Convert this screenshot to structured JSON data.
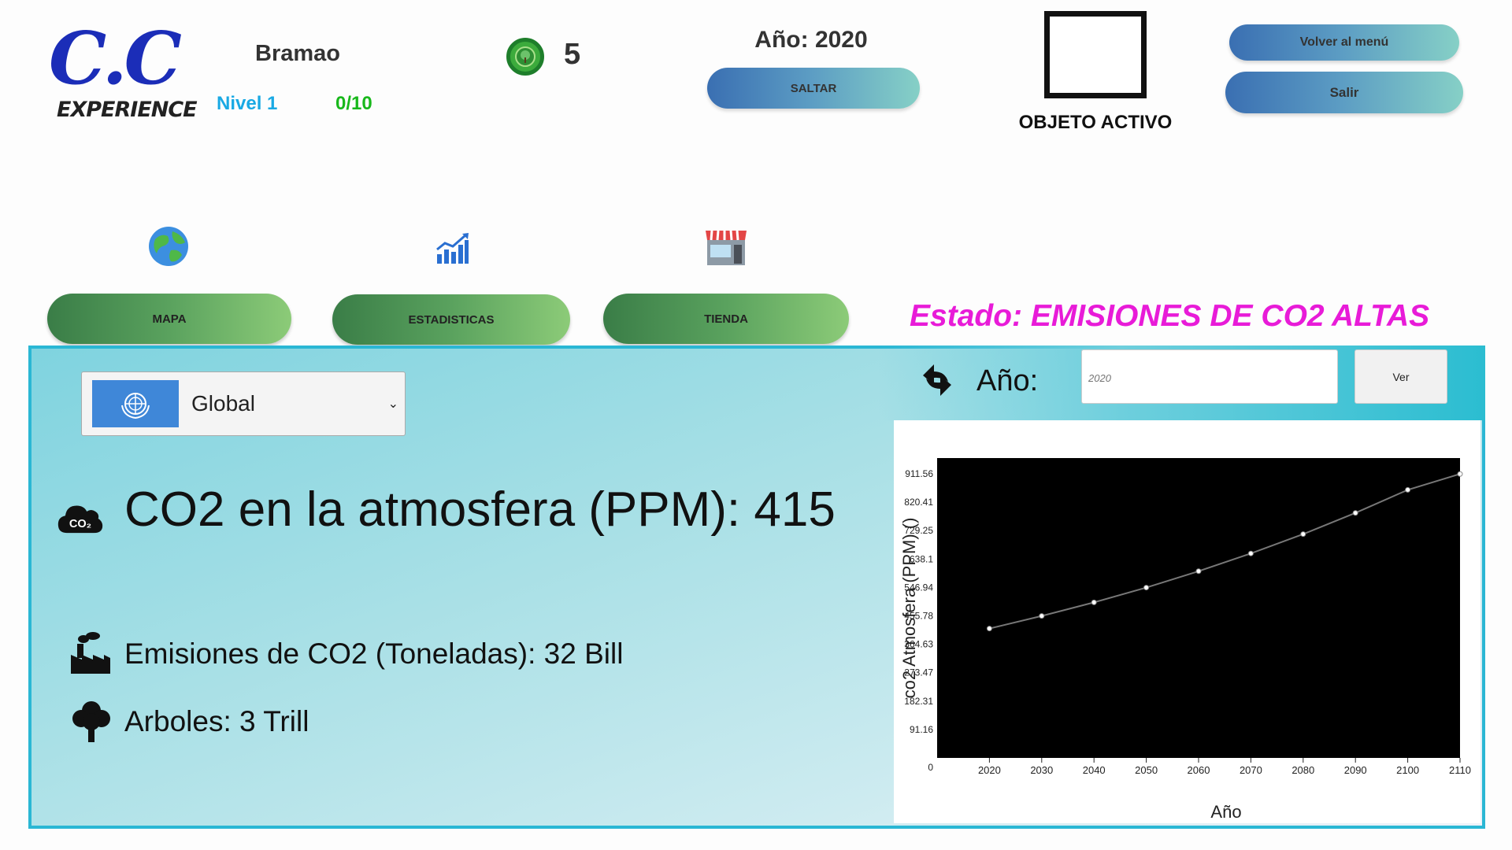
{
  "header": {
    "logo": {
      "text_main": "C.C",
      "text_sub": "EXPERIENCE"
    },
    "player_name": "Bramao",
    "level": "Nivel 1",
    "progress": "0/10",
    "coins": "5",
    "year_label": "Año: 2020",
    "skip_label": "SALTAR",
    "active_object_label": "OBJETO ACTIVO",
    "menu_label": "Volver al menú",
    "exit_label": "Salir"
  },
  "nav": {
    "items": [
      {
        "label": "MAPA",
        "icon": "globe-icon"
      },
      {
        "label": "ESTADISTICAS",
        "icon": "chart-icon"
      },
      {
        "label": "TIENDA",
        "icon": "store-icon"
      }
    ]
  },
  "status": "Estado: EMISIONES DE CO2 ALTAS",
  "panel": {
    "region": "Global",
    "co2_atmosphere": "CO2 en la atmosfera (PPM): 415",
    "emissions": "Emisiones de CO2 (Toneladas): 32 Bill",
    "trees": "Arboles: 3 Trill",
    "year_label": "Año:",
    "year_input_placeholder": "2020",
    "view_button": "Ver"
  },
  "colors": {
    "status": "#e81bd8",
    "level": "#19a9e4",
    "progress": "#18b81b",
    "panel_border": "#2ab7d4"
  },
  "chart_data": {
    "type": "line",
    "xlabel": "Año",
    "ylabel": "co2 Atmosfera (PPM) ()",
    "x": [
      2020,
      2030,
      2040,
      2050,
      2060,
      2070,
      2080,
      2090,
      2100,
      2110
    ],
    "series": [
      {
        "values": [
          415,
          455.5,
          499,
          546.5,
          599,
          656,
          718,
          786,
          860,
          911
        ]
      }
    ],
    "yticks": [
      "0",
      "91.16",
      "182.31",
      "273.47",
      "364.63",
      "455.78",
      "546.94",
      "638.1",
      "729.25",
      "820.41",
      "911.56"
    ],
    "xticks": [
      "2020",
      "2030",
      "2040",
      "2050",
      "2060",
      "2070",
      "2080",
      "2090",
      "2100",
      "2110"
    ],
    "ylim": [
      0,
      911.56
    ],
    "background": "#000000",
    "line_color": "#777777"
  }
}
